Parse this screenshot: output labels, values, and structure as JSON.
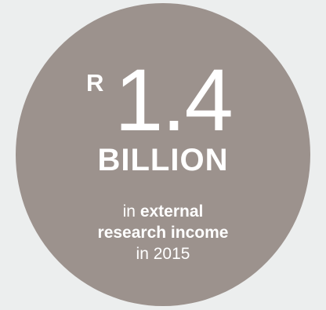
{
  "stat": {
    "currency": "R",
    "amount": "1.4",
    "unit": "BILLION",
    "caption": {
      "line1_prefix": "in",
      "line1_bold": "external",
      "line2_bold": "research income",
      "line3": "in 2015"
    }
  },
  "colors": {
    "background": "#eceeee",
    "circle": "#9c928d",
    "text": "#ffffff"
  }
}
